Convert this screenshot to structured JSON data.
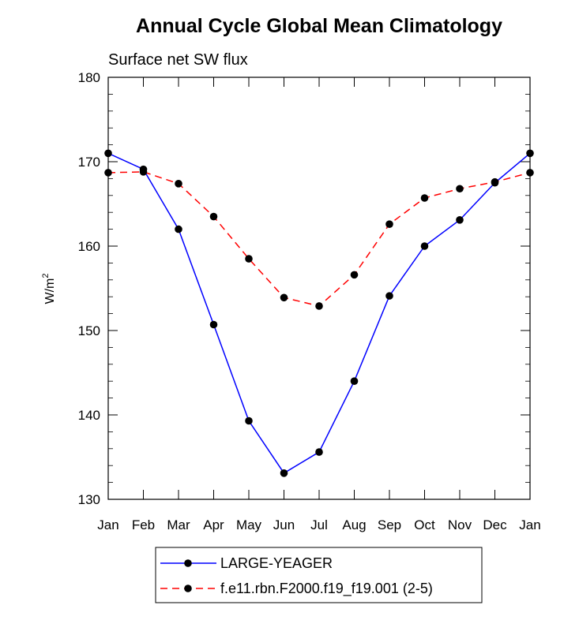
{
  "chart_data": {
    "type": "line",
    "title": "Annual Cycle Global Mean Climatology",
    "subtitle": "Surface net SW flux",
    "ylabel": "W/m",
    "ylabel_superscript": "2",
    "categories": [
      "Jan",
      "Feb",
      "Mar",
      "Apr",
      "May",
      "Jun",
      "Jul",
      "Aug",
      "Sep",
      "Oct",
      "Nov",
      "Dec",
      "Jan"
    ],
    "ylim": [
      130,
      180
    ],
    "yticks": [
      130,
      140,
      150,
      160,
      170,
      180
    ],
    "grid": false,
    "legend_position": "bottom",
    "series": [
      {
        "name": "LARGE-YEAGER",
        "color": "#0000ff",
        "line_style": "solid",
        "values": [
          171.0,
          169.1,
          162.0,
          150.7,
          139.3,
          133.1,
          135.6,
          144.0,
          154.1,
          160.0,
          163.1,
          167.5,
          171.0
        ]
      },
      {
        "name": "f.e11.rbn.F2000.f19_f19.001 (2-5)",
        "color": "#ff0000",
        "line_style": "dashed",
        "values": [
          168.7,
          168.8,
          167.4,
          163.5,
          158.5,
          153.9,
          152.9,
          156.6,
          162.6,
          165.7,
          166.8,
          167.6,
          168.7
        ]
      }
    ]
  }
}
